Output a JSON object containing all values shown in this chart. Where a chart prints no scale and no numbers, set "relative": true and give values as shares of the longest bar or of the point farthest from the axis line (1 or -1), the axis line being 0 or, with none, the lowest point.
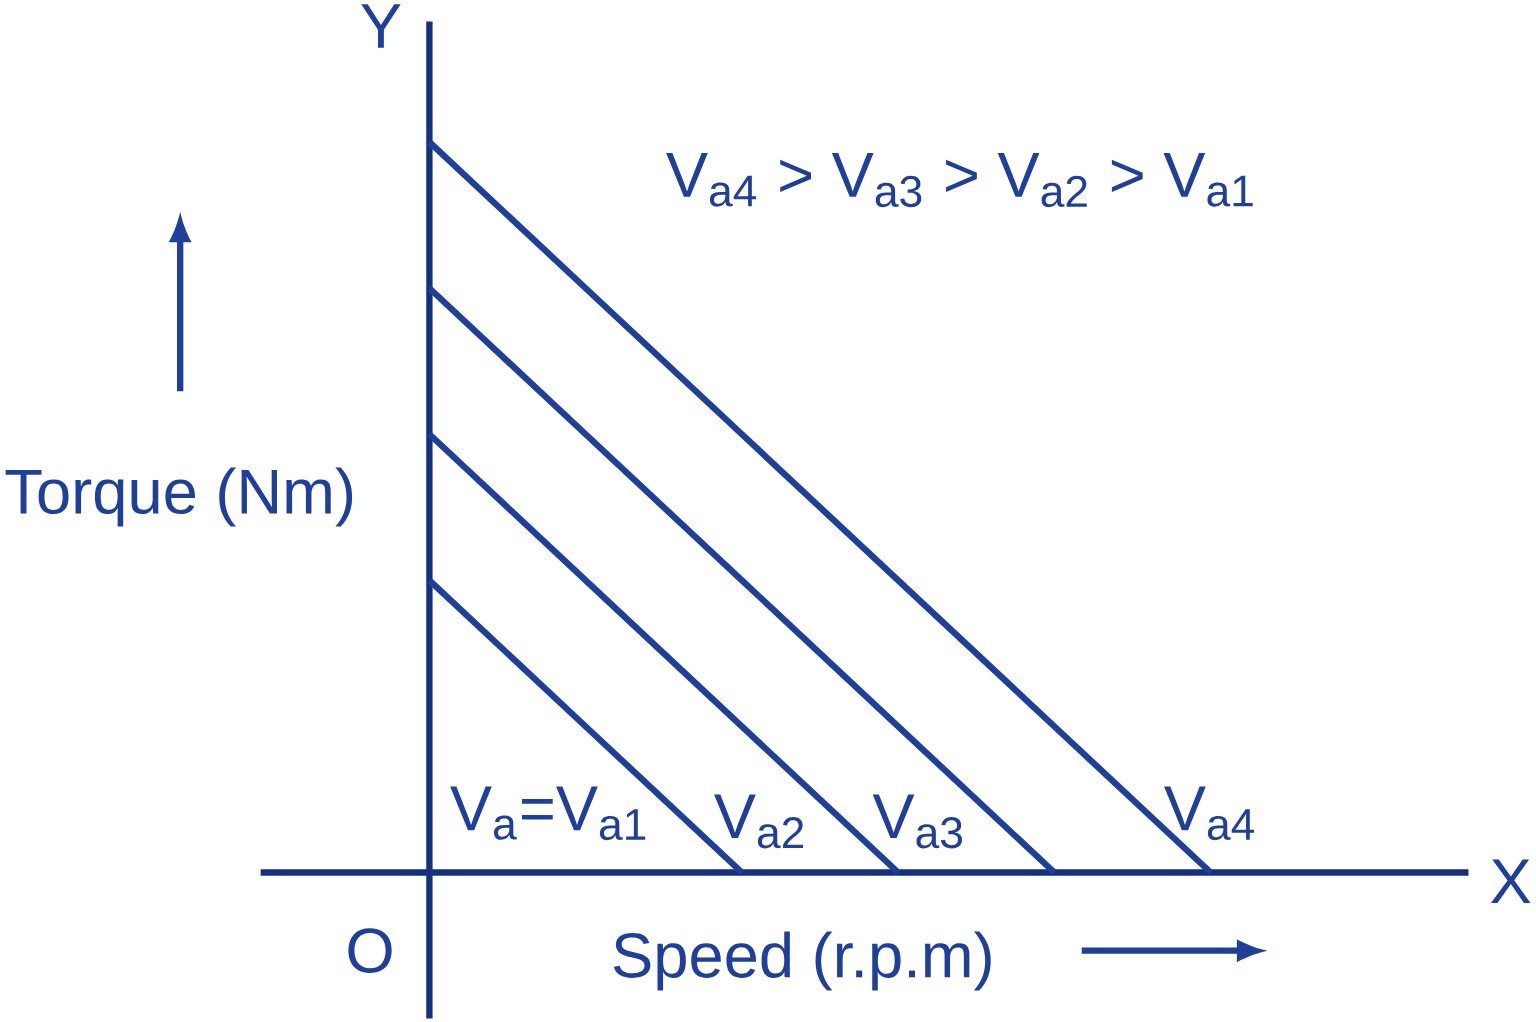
{
  "chart_data": {
    "type": "line",
    "relative": true,
    "xlabel": "Speed (r.p.m)",
    "ylabel": "Torque (Nm)",
    "annotations": [
      "V$_{a4}$ > V$_{a3}$ > V$_{a2}$ > V$_{a1}$",
      "Y",
      "X",
      "O"
    ],
    "marker": "none",
    "line_style": "solid",
    "categories": [
      null,
      null,
      null,
      null,
      null,
      null
    ],
    "series": [
      {
        "name": "V$_{a}$=V$_{a1}$",
        "color": "#1e3f9a",
        "values": [
          0.4,
          0.2,
          0,
          null,
          null,
          null
        ]
      },
      {
        "name": "V$_{a2}$",
        "color": "#1e3f9a",
        "values": [
          0.6,
          0.4,
          0.2,
          0,
          null,
          null
        ]
      },
      {
        "name": "V$_{a3}$",
        "color": "#1e3f9a",
        "values": [
          0.8,
          0.6,
          0.4,
          0.2,
          0,
          null
        ]
      },
      {
        "name": "V$_{a4}$",
        "color": "#1e3f9a",
        "values": [
          1,
          0.8,
          0.6,
          0.4,
          0.2,
          0
        ]
      }
    ]
  }
}
